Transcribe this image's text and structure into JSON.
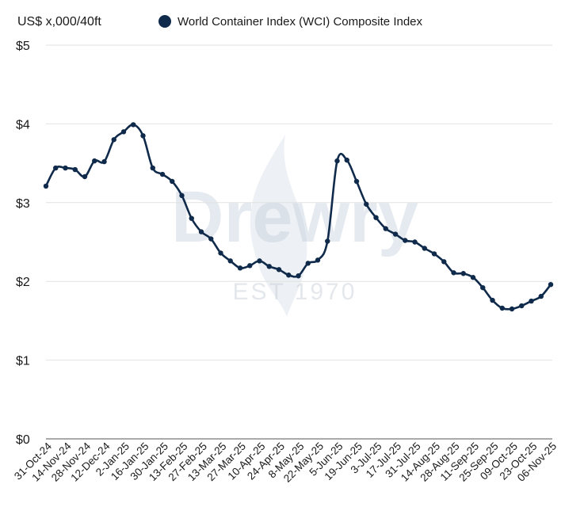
{
  "watermark": {
    "brand": "Drewry",
    "tagline": "EST 1970"
  },
  "chart_data": {
    "type": "line",
    "title": "",
    "ylabel": "US$ x,000/40ft",
    "xlabel": "",
    "ylim": [
      0,
      5
    ],
    "yticks": [
      0,
      1,
      2,
      3,
      4,
      5
    ],
    "ytick_labels": [
      "$0",
      "$1",
      "$2",
      "$3",
      "$4",
      "$5"
    ],
    "grid": "horizontal",
    "legend_position": "top",
    "line_color": "#0f2a4a",
    "tick_labels": [
      "31-Oct-24",
      "14-Nov-24",
      "28-Nov-24",
      "12-Dec-24",
      "2-Jan-25",
      "16-Jan-25",
      "30-Jan-25",
      "13-Feb-25",
      "27-Feb-25",
      "13-Mar-25",
      "27-Mar-25",
      "10-Apr-25",
      "24-Apr-25",
      "8-May-25",
      "22-May-25",
      "5-Jun-25",
      "19-Jun-25",
      "3-Jul-25",
      "17-Jul-25",
      "31-Jul-25",
      "14-Aug-25",
      "28-Aug-25",
      "11-Sep-25",
      "25-Sep-25",
      "09-Oct-25",
      "23-Oct-25",
      "06-Nov-25"
    ],
    "series": [
      {
        "name": "World Container Index (WCI) Composite Index",
        "values": [
          3.21,
          3.44,
          3.44,
          3.42,
          3.33,
          3.53,
          3.52,
          3.8,
          3.9,
          3.99,
          3.85,
          3.44,
          3.36,
          3.27,
          3.09,
          2.8,
          2.63,
          2.54,
          2.36,
          2.26,
          2.17,
          2.2,
          2.26,
          2.19,
          2.15,
          2.08,
          2.07,
          2.23,
          2.27,
          2.51,
          3.53,
          3.54,
          3.27,
          2.98,
          2.81,
          2.67,
          2.6,
          2.52,
          2.5,
          2.42,
          2.35,
          2.25,
          2.11,
          2.1,
          2.05,
          1.92,
          1.76,
          1.66,
          1.65,
          1.69,
          1.75,
          1.81,
          1.96
        ]
      }
    ]
  }
}
